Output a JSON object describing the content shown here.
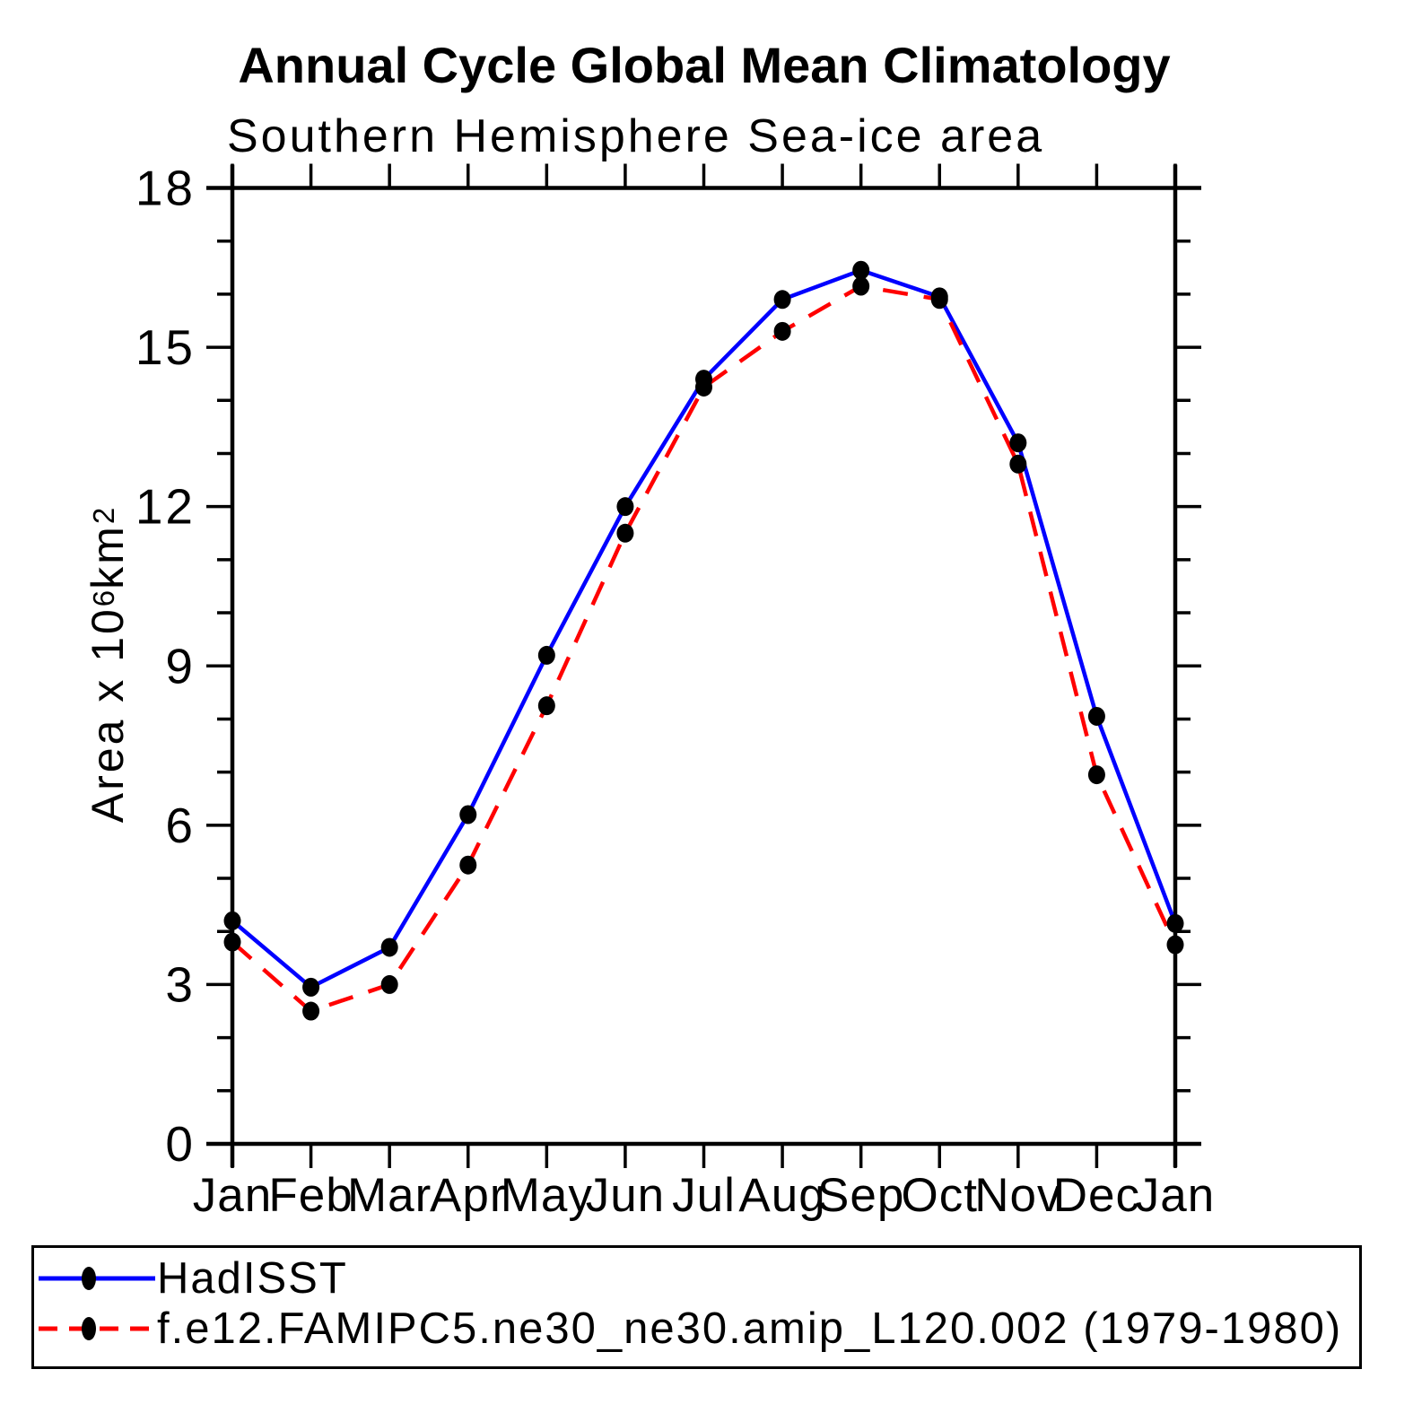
{
  "title": "Annual Cycle Global Mean Climatology",
  "subtitle": "Southern Hemisphere Sea-ice area",
  "y_axis_title": {
    "full": "Area x 10^6 km^2",
    "prefix": "Area x 10",
    "exp1": "6",
    "mid": " km",
    "exp2": "2"
  },
  "legend": {
    "entries": [
      {
        "label": "HadISST",
        "color": "#0000ff",
        "style": "solid"
      },
      {
        "label": "f.e12.FAMIPC5.ne30_ne30.amip_L120.002 (1979-1980)",
        "color": "#ff0000",
        "style": "dashed"
      }
    ]
  },
  "chart_data": {
    "type": "line",
    "title": "Annual Cycle Global Mean Climatology",
    "subtitle": "Southern Hemisphere Sea-ice area",
    "xlabel": "",
    "ylabel": "Area x 10^6 km^2",
    "categories": [
      "Jan",
      "Feb",
      "Mar",
      "Apr",
      "May",
      "Jun",
      "Jul",
      "Aug",
      "Sep",
      "Oct",
      "Nov",
      "Dec",
      "Jan"
    ],
    "series": [
      {
        "name": "HadISST",
        "color": "#0000ff",
        "line_style": "solid",
        "marker": "filled-circle",
        "marker_color": "#000000",
        "values": [
          4.2,
          2.95,
          3.7,
          6.2,
          9.2,
          12.0,
          14.4,
          15.9,
          16.45,
          15.95,
          13.2,
          8.05,
          4.15
        ]
      },
      {
        "name": "f.e12.FAMIPC5.ne30_ne30.amip_L120.002 (1979-1980)",
        "color": "#ff0000",
        "line_style": "dashed",
        "marker": "filled-circle",
        "marker_color": "#000000",
        "values": [
          3.8,
          2.5,
          3.0,
          5.25,
          8.25,
          11.5,
          14.25,
          15.3,
          16.15,
          15.9,
          12.8,
          6.95,
          3.75
        ]
      }
    ],
    "ylim": [
      0,
      18
    ],
    "ytick_labels": [
      "0",
      "3",
      "6",
      "9",
      "12",
      "15",
      "18"
    ],
    "ytick_values": [
      0,
      3,
      6,
      9,
      12,
      15,
      18
    ],
    "ytick_minor_step": 1,
    "grid": false,
    "frame": "box-with-outward-ticks",
    "legend_position": "bottom",
    "axis_color": "#000000"
  }
}
